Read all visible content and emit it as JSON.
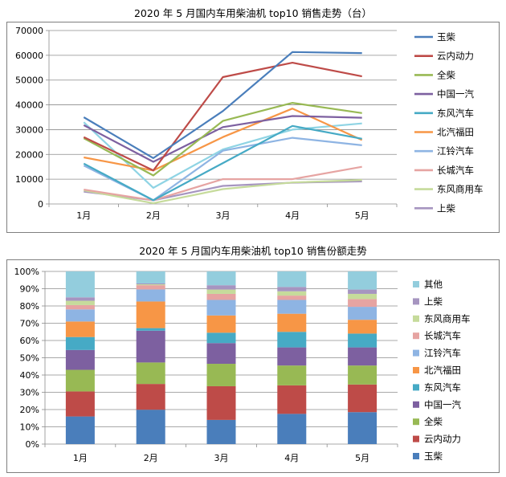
{
  "chart_data": [
    {
      "type": "line",
      "title": "2020 年 5 月国内车用柴油机 top10 销售走势（台）",
      "xlabel": "",
      "ylabel": "",
      "categories": [
        "1月",
        "2月",
        "3月",
        "4月",
        "5月"
      ],
      "ylim": [
        0,
        70000
      ],
      "yticks": [
        "0",
        "10000",
        "20000",
        "30000",
        "40000",
        "50000",
        "60000",
        "70000"
      ],
      "grid": true,
      "legend_position": "right",
      "series": [
        {
          "name": "玉柴",
          "color": "#4a7ebb",
          "values": [
            35000,
            18500,
            37500,
            61300,
            60900
          ]
        },
        {
          "name": "云内动力",
          "color": "#be4b48",
          "values": [
            27000,
            13500,
            51200,
            57000,
            51500
          ]
        },
        {
          "name": "全柴",
          "color": "#98b954",
          "values": [
            26500,
            11500,
            33500,
            40800,
            36700
          ]
        },
        {
          "name": "中国一汽",
          "color": "#7d60a0",
          "values": [
            31800,
            17000,
            31000,
            35500,
            34800
          ]
        },
        {
          "name": "东风汽车",
          "color": "#46aac5",
          "values": [
            16300,
            1500,
            16500,
            31500,
            26300
          ]
        },
        {
          "name": "北汽福田",
          "color": "#f79646",
          "values": [
            18800,
            13500,
            27000,
            38500,
            25800
          ]
        },
        {
          "name": "江铃汽车",
          "color": "#8eb4e3",
          "values": [
            15500,
            1500,
            21500,
            26700,
            23700
          ]
        },
        {
          "name": "长城汽车",
          "color": "#e6a4a2",
          "values": [
            5800,
            1500,
            10000,
            10000,
            15000
          ]
        },
        {
          "name": "东风商用车",
          "color": "#c6db9b",
          "values": [
            5500,
            300,
            6000,
            8700,
            9700
          ]
        },
        {
          "name": "上柴",
          "color": "#a695c0",
          "values": [
            5000,
            1500,
            7300,
            8600,
            9100
          ]
        },
        {
          "name": "",
          "color": "#8fd4e4",
          "values": [
            33000,
            6500,
            22000,
            30000,
            32500
          ]
        }
      ]
    },
    {
      "type": "bar",
      "stacked": true,
      "title": "2020 年 5 月国内车用柴油机 top10 销售份额走势",
      "xlabel": "",
      "ylabel": "",
      "categories": [
        "1月",
        "2月",
        "3月",
        "4月",
        "5月"
      ],
      "ylim": [
        0,
        100
      ],
      "yticks": [
        "0%",
        "10%",
        "20%",
        "30%",
        "40%",
        "50%",
        "60%",
        "70%",
        "80%",
        "90%",
        "100%"
      ],
      "grid": true,
      "legend_position": "right",
      "series": [
        {
          "name": "玉柴",
          "color": "#4a7ebb",
          "values": [
            16,
            20,
            14,
            17.5,
            18.5
          ]
        },
        {
          "name": "云内动力",
          "color": "#be4b48",
          "values": [
            14.5,
            15,
            19.5,
            16.5,
            16
          ]
        },
        {
          "name": "全柴",
          "color": "#98b954",
          "values": [
            12.5,
            12.5,
            13,
            11.5,
            11
          ]
        },
        {
          "name": "中国一汽",
          "color": "#7d60a0",
          "values": [
            11.5,
            18.5,
            12,
            10.5,
            10.5
          ]
        },
        {
          "name": "东风汽车",
          "color": "#46aac5",
          "values": [
            7.5,
            1.5,
            6,
            9,
            8
          ]
        },
        {
          "name": "北汽福田",
          "color": "#f79646",
          "values": [
            9,
            15.5,
            10,
            10.5,
            8
          ]
        },
        {
          "name": "江铃汽车",
          "color": "#8eb4e3",
          "values": [
            7,
            7,
            9,
            8,
            7.5
          ]
        },
        {
          "name": "长城汽车",
          "color": "#e6a4a2",
          "values": [
            2.5,
            2.5,
            3.5,
            2.5,
            4.5
          ]
        },
        {
          "name": "东风商用车",
          "color": "#c6db9b",
          "values": [
            2.5,
            0.5,
            2.5,
            2.5,
            3
          ]
        },
        {
          "name": "上柴",
          "color": "#a695c0",
          "values": [
            2,
            0.5,
            2.5,
            2.5,
            2.5
          ]
        },
        {
          "name": "其他",
          "color": "#93cddd",
          "values": [
            15,
            7,
            8,
            9,
            10.5
          ]
        }
      ]
    }
  ]
}
